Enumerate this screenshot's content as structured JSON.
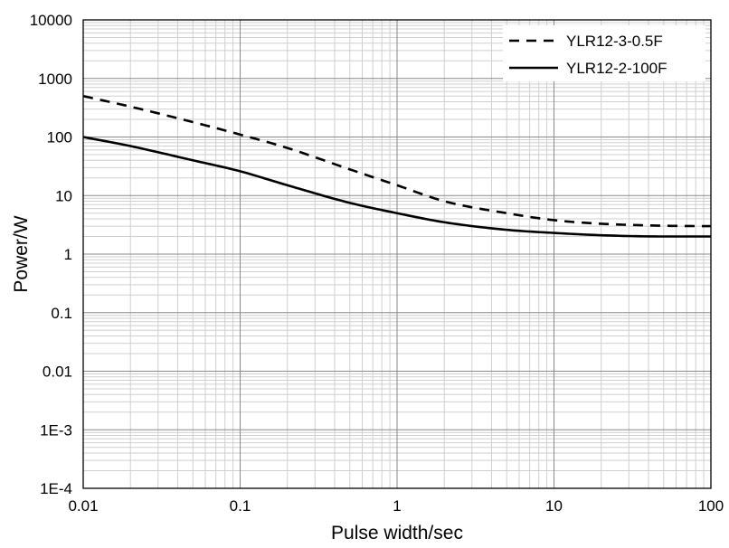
{
  "chart_data": {
    "type": "line",
    "title": "",
    "xlabel": "Pulse width/sec",
    "ylabel": "Power/W",
    "x_scale": "log",
    "y_scale": "log",
    "xlim": [
      0.01,
      100
    ],
    "ylim": [
      0.0001,
      10000
    ],
    "x_ticks": [
      {
        "value": 0.01,
        "label": "0.01"
      },
      {
        "value": 0.1,
        "label": "0.1"
      },
      {
        "value": 1,
        "label": "1"
      },
      {
        "value": 10,
        "label": "10"
      },
      {
        "value": 100,
        "label": "100"
      }
    ],
    "y_ticks": [
      {
        "value": 0.0001,
        "label": "1E-4"
      },
      {
        "value": 0.001,
        "label": "1E-3"
      },
      {
        "value": 0.01,
        "label": "0.01"
      },
      {
        "value": 0.1,
        "label": "0.1"
      },
      {
        "value": 1,
        "label": "1"
      },
      {
        "value": 10,
        "label": "10"
      },
      {
        "value": 100,
        "label": "100"
      },
      {
        "value": 1000,
        "label": "1000"
      },
      {
        "value": 10000,
        "label": "10000"
      }
    ],
    "grid": true,
    "legend_position": "top-right",
    "series": [
      {
        "name": "YLR12-3-0.5F",
        "style": "dashed",
        "color": "#000000",
        "x": [
          0.01,
          0.02,
          0.05,
          0.1,
          0.2,
          0.5,
          1,
          2,
          5,
          10,
          20,
          50,
          100
        ],
        "y": [
          500,
          330,
          180,
          110,
          65,
          28,
          15,
          8,
          5,
          3.8,
          3.3,
          3.05,
          3.0
        ]
      },
      {
        "name": "YLR12-2-100F",
        "style": "solid",
        "color": "#000000",
        "x": [
          0.01,
          0.02,
          0.05,
          0.1,
          0.2,
          0.5,
          1,
          2,
          5,
          10,
          20,
          50,
          100
        ],
        "y": [
          100,
          70,
          40,
          26,
          15,
          7.5,
          5,
          3.5,
          2.6,
          2.3,
          2.1,
          2.0,
          2.0
        ]
      }
    ]
  }
}
